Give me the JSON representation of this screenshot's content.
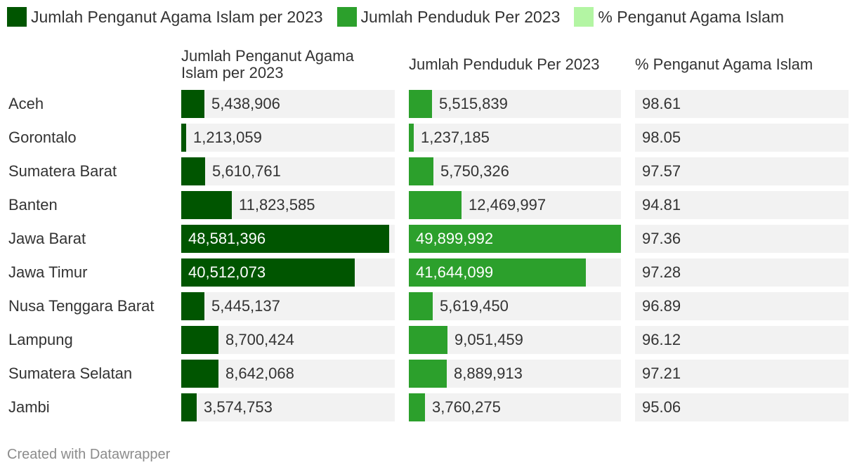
{
  "legend": [
    {
      "label": "Jumlah Penganut Agama Islam per 2023",
      "color": "#005500"
    },
    {
      "label": "Jumlah Penduduk Per 2023",
      "color": "#2ca02c"
    },
    {
      "label": "% Penganut Agama Islam",
      "color": "#b3f5a3"
    }
  ],
  "headers": {
    "col1_line1": "Jumlah Penganut Agama",
    "col1_line2": "Islam per 2023",
    "col2": "Jumlah Penduduk Per 2023",
    "col3": "% Penganut Agama Islam"
  },
  "footer": "Created with Datawrapper",
  "chart_data": {
    "type": "table",
    "columns": [
      "Jumlah Penganut Agama Islam per 2023",
      "Jumlah Penduduk Per 2023",
      "% Penganut Agama Islam"
    ],
    "rows": [
      {
        "region": "Aceh",
        "muslims": 5438906,
        "muslims_label": "5,438,906",
        "population": 5515839,
        "population_label": "5,515,839",
        "pct": "98.61"
      },
      {
        "region": "Gorontalo",
        "muslims": 1213059,
        "muslims_label": "1,213,059",
        "population": 1237185,
        "population_label": "1,237,185",
        "pct": "98.05"
      },
      {
        "region": "Sumatera Barat",
        "muslims": 5610761,
        "muslims_label": "5,610,761",
        "population": 5750326,
        "population_label": "5,750,326",
        "pct": "97.57"
      },
      {
        "region": "Banten",
        "muslims": 11823585,
        "muslims_label": "11,823,585",
        "population": 12469997,
        "population_label": "12,469,997",
        "pct": "94.81"
      },
      {
        "region": "Jawa Barat",
        "muslims": 48581396,
        "muslims_label": "48,581,396",
        "population": 49899992,
        "population_label": "49,899,992",
        "pct": "97.36"
      },
      {
        "region": "Jawa Timur",
        "muslims": 40512073,
        "muslims_label": "40,512,073",
        "population": 41644099,
        "population_label": "41,644,099",
        "pct": "97.28"
      },
      {
        "region": "Nusa Tenggara Barat",
        "muslims": 5445137,
        "muslims_label": "5,445,137",
        "population": 5619450,
        "population_label": "5,619,450",
        "pct": "96.89"
      },
      {
        "region": "Lampung",
        "muslims": 8700424,
        "muslims_label": "8,700,424",
        "population": 9051459,
        "population_label": "9,051,459",
        "pct": "96.12"
      },
      {
        "region": "Sumatera Selatan",
        "muslims": 8642068,
        "muslims_label": "8,642,068",
        "population": 8889913,
        "population_label": "8,889,913",
        "pct": "97.21"
      },
      {
        "region": "Jambi",
        "muslims": 3574753,
        "muslims_label": "3,574,753",
        "population": 3760275,
        "population_label": "3,760,275",
        "pct": "95.06"
      }
    ]
  }
}
